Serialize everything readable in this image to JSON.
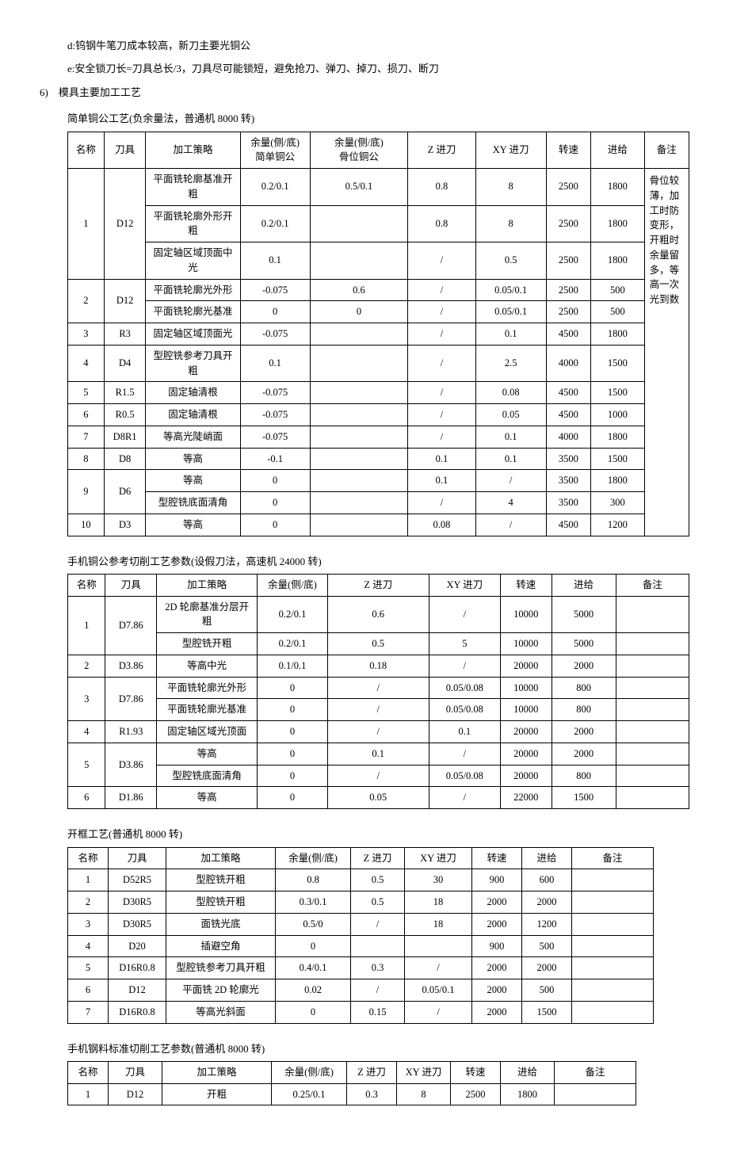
{
  "paragraphs": {
    "d": "d:钨钢牛笔刀成本较高，新刀主要光铜公",
    "e": "e:安全锁刀长=刀具总长/3，刀具尽可能锁短，避免抢刀、弹刀、掉刀、损刀、断刀",
    "section": "6)　模具主要加工工艺"
  },
  "t1": {
    "title": "简单铜公工艺(负余量法，普通机 8000 转)",
    "headers": [
      "名称",
      "刀具",
      "加工策略",
      "余量(侧/底)\n简单铜公",
      "余量(侧/底)\n骨位铜公",
      "Z 进刀",
      "XY 进刀",
      "转速",
      "进给",
      "备注"
    ],
    "note": "骨位较薄，加工时防变形，开粗时余量留多，等高一次光到数",
    "rows": [
      {
        "name": "1",
        "tool": "D12",
        "span": 3,
        "sub": [
          {
            "s": "平面铣轮廓基准开粗",
            "a": "0.2/0.1",
            "b": "0.5/0.1",
            "z": "0.8",
            "xy": "8",
            "sp": "2500",
            "f": "1800"
          },
          {
            "s": "平面铣轮廓外形开粗",
            "a": "0.2/0.1",
            "b": "",
            "z": "0.8",
            "xy": "8",
            "sp": "2500",
            "f": "1800"
          },
          {
            "s": "固定轴区域顶面中光",
            "a": "0.1",
            "b": "",
            "z": "/",
            "xy": "0.5",
            "sp": "2500",
            "f": "1800"
          }
        ]
      },
      {
        "name": "2",
        "tool": "D12",
        "span": 2,
        "sub": [
          {
            "s": "平面铣轮廓光外形",
            "a": "-0.075",
            "b": "0.6",
            "z": "/",
            "xy": "0.05/0.1",
            "sp": "2500",
            "f": "500"
          },
          {
            "s": "平面铣轮廓光基准",
            "a": "0",
            "b": "0",
            "z": "/",
            "xy": "0.05/0.1",
            "sp": "2500",
            "f": "500"
          }
        ]
      },
      {
        "name": "3",
        "tool": "R3",
        "span": 1,
        "sub": [
          {
            "s": "固定轴区域顶面光",
            "a": "-0.075",
            "b": "",
            "z": "/",
            "xy": "0.1",
            "sp": "4500",
            "f": "1800"
          }
        ]
      },
      {
        "name": "4",
        "tool": "D4",
        "span": 1,
        "sub": [
          {
            "s": "型腔铣参考刀具开粗",
            "a": "0.1",
            "b": "",
            "z": "/",
            "xy": "2.5",
            "sp": "4000",
            "f": "1500"
          }
        ]
      },
      {
        "name": "5",
        "tool": "R1.5",
        "span": 1,
        "sub": [
          {
            "s": "固定轴清根",
            "a": "-0.075",
            "b": "",
            "z": "/",
            "xy": "0.08",
            "sp": "4500",
            "f": "1500"
          }
        ]
      },
      {
        "name": "6",
        "tool": "R0.5",
        "span": 1,
        "sub": [
          {
            "s": "固定轴清根",
            "a": "-0.075",
            "b": "",
            "z": "/",
            "xy": "0.05",
            "sp": "4500",
            "f": "1000"
          }
        ]
      },
      {
        "name": "7",
        "tool": "D8R1",
        "span": 1,
        "sub": [
          {
            "s": "等高光陡峭面",
            "a": "-0.075",
            "b": "",
            "z": "/",
            "xy": "0.1",
            "sp": "4000",
            "f": "1800"
          }
        ]
      },
      {
        "name": "8",
        "tool": "D8",
        "span": 1,
        "sub": [
          {
            "s": "等高",
            "a": "-0.1",
            "b": "",
            "z": "0.1",
            "xy": "0.1",
            "sp": "3500",
            "f": "1500"
          }
        ]
      },
      {
        "name": "9",
        "tool": "D6",
        "span": 2,
        "sub": [
          {
            "s": "等高",
            "a": "0",
            "b": "",
            "z": "0.1",
            "xy": "/",
            "sp": "3500",
            "f": "1800"
          },
          {
            "s": "型腔铣底面清角",
            "a": "0",
            "b": "",
            "z": "/",
            "xy": "4",
            "sp": "3500",
            "f": "300"
          }
        ]
      },
      {
        "name": "10",
        "tool": "D3",
        "span": 1,
        "sub": [
          {
            "s": "等高",
            "a": "0",
            "b": "",
            "z": "0.08",
            "xy": "/",
            "sp": "4500",
            "f": "1200"
          }
        ]
      }
    ]
  },
  "t2": {
    "title": "手机铜公参考切削工艺参数(设假刀法，高速机 24000 转)",
    "headers": [
      "名称",
      "刀具",
      "加工策略",
      "余量(侧/底)",
      "Z 进刀",
      "XY 进刀",
      "转速",
      "进给",
      "备注"
    ],
    "rows": [
      {
        "name": "1",
        "tool": "D7.86",
        "span": 2,
        "sub": [
          {
            "s": "2D 轮廓基准分层开粗",
            "a": "0.2/0.1",
            "z": "0.6",
            "xy": "/",
            "sp": "10000",
            "f": "5000",
            "r": ""
          },
          {
            "s": "型腔铣开粗",
            "a": "0.2/0.1",
            "z": "0.5",
            "xy": "5",
            "sp": "10000",
            "f": "5000",
            "r": ""
          }
        ]
      },
      {
        "name": "2",
        "tool": "D3.86",
        "span": 1,
        "sub": [
          {
            "s": "等高中光",
            "a": "0.1/0.1",
            "z": "0.18",
            "xy": "/",
            "sp": "20000",
            "f": "2000",
            "r": ""
          }
        ]
      },
      {
        "name": "3",
        "tool": "D7.86",
        "span": 2,
        "sub": [
          {
            "s": "平面铣轮廓光外形",
            "a": "0",
            "z": "/",
            "xy": "0.05/0.08",
            "sp": "10000",
            "f": "800",
            "r": ""
          },
          {
            "s": "平面铣轮廓光基准",
            "a": "0",
            "z": "/",
            "xy": "0.05/0.08",
            "sp": "10000",
            "f": "800",
            "r": ""
          }
        ]
      },
      {
        "name": "4",
        "tool": "R1.93",
        "span": 1,
        "sub": [
          {
            "s": "固定轴区域光顶面",
            "a": "0",
            "z": "/",
            "xy": "0.1",
            "sp": "20000",
            "f": "2000",
            "r": ""
          }
        ]
      },
      {
        "name": "5",
        "tool": "D3.86",
        "span": 2,
        "sub": [
          {
            "s": "等高",
            "a": "0",
            "z": "0.1",
            "xy": "/",
            "sp": "20000",
            "f": "2000",
            "r": ""
          },
          {
            "s": "型腔铣底面清角",
            "a": "0",
            "z": "/",
            "xy": "0.05/0.08",
            "sp": "20000",
            "f": "800",
            "r": ""
          }
        ]
      },
      {
        "name": "6",
        "tool": "D1.86",
        "span": 1,
        "sub": [
          {
            "s": "等高",
            "a": "0",
            "z": "0.05",
            "xy": "/",
            "sp": "22000",
            "f": "1500",
            "r": ""
          }
        ]
      }
    ]
  },
  "t3": {
    "title": "开框工艺(普通机 8000 转)",
    "headers": [
      "名称",
      "刀具",
      "加工策略",
      "余量(侧/底)",
      "Z 进刀",
      "XY 进刀",
      "转速",
      "进给",
      "备注"
    ],
    "rows": [
      {
        "n": "1",
        "t": "D52R5",
        "s": "型腔铣开粗",
        "a": "0.8",
        "z": "0.5",
        "xy": "30",
        "sp": "900",
        "f": "600",
        "r": ""
      },
      {
        "n": "2",
        "t": "D30R5",
        "s": "型腔铣开粗",
        "a": "0.3/0.1",
        "z": "0.5",
        "xy": "18",
        "sp": "2000",
        "f": "2000",
        "r": ""
      },
      {
        "n": "3",
        "t": "D30R5",
        "s": "面铣光底",
        "a": "0.5/0",
        "z": "/",
        "xy": "18",
        "sp": "2000",
        "f": "1200",
        "r": ""
      },
      {
        "n": "4",
        "t": "D20",
        "s": "插避空角",
        "a": "0",
        "z": "",
        "xy": "",
        "sp": "900",
        "f": "500",
        "r": ""
      },
      {
        "n": "5",
        "t": "D16R0.8",
        "s": "型腔铣参考刀具开粗",
        "a": "0.4/0.1",
        "z": "0.3",
        "xy": "/",
        "sp": "2000",
        "f": "2000",
        "r": ""
      },
      {
        "n": "6",
        "t": "D12",
        "s": "平面铣 2D 轮廓光",
        "a": "0.02",
        "z": "/",
        "xy": "0.05/0.1",
        "sp": "2000",
        "f": "500",
        "r": ""
      },
      {
        "n": "7",
        "t": "D16R0.8",
        "s": "等高光斜面",
        "a": "0",
        "z": "0.15",
        "xy": "/",
        "sp": "2000",
        "f": "1500",
        "r": ""
      }
    ]
  },
  "t4": {
    "title": "手机钢料标准切削工艺参数(普通机 8000 转)",
    "headers": [
      "名称",
      "刀具",
      "加工策略",
      "余量(侧/底)",
      "Z 进刀",
      "XY 进刀",
      "转速",
      "进给",
      "备注"
    ],
    "rows": [
      {
        "n": "1",
        "t": "D12",
        "s": "开粗",
        "a": "0.25/0.1",
        "z": "0.3",
        "xy": "8",
        "sp": "2500",
        "f": "1800",
        "r": ""
      }
    ]
  }
}
